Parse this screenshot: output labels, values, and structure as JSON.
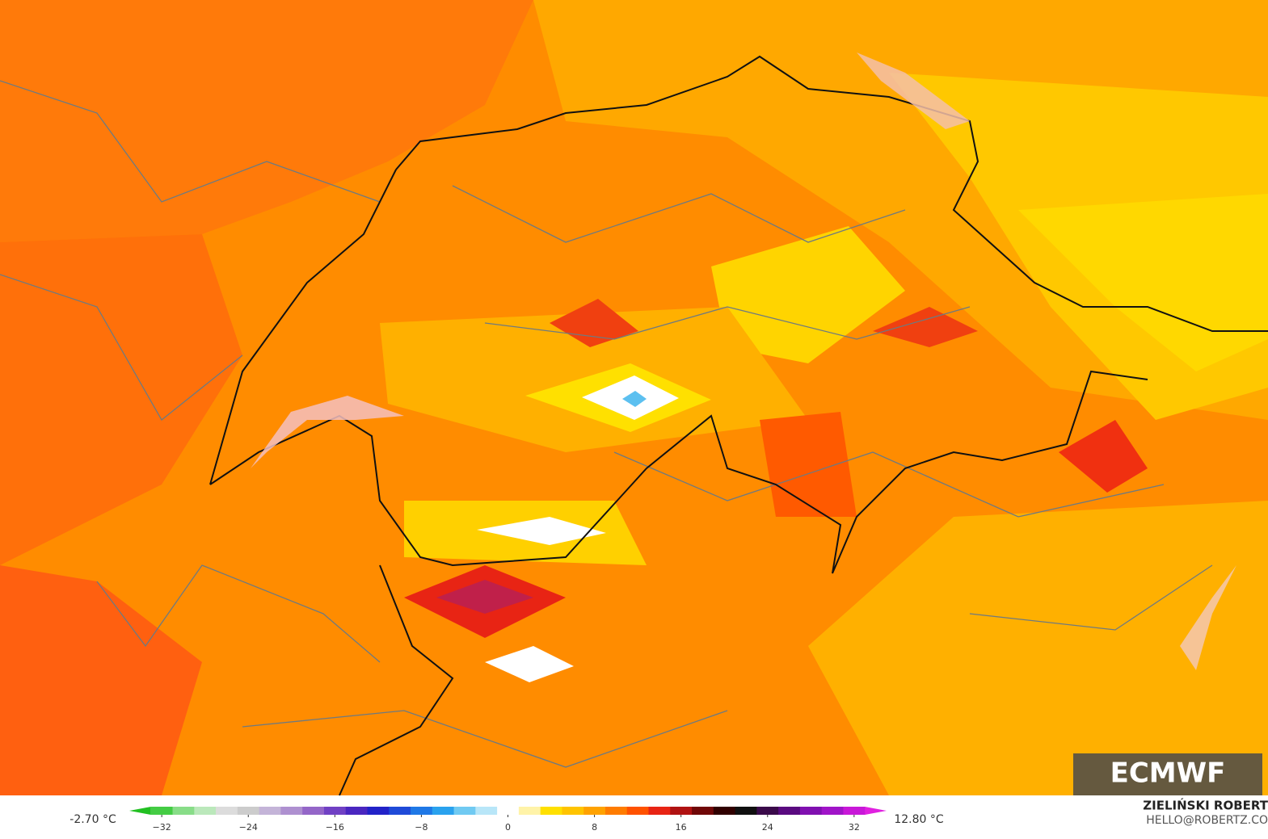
{
  "legend": {
    "min_label": "-2.70 °C",
    "max_label": "12.80 °C",
    "range": [
      -35,
      35
    ],
    "ticks": [
      {
        "value": -32,
        "label": "−32"
      },
      {
        "value": -24,
        "label": "−24"
      },
      {
        "value": -16,
        "label": "−16"
      },
      {
        "value": -8,
        "label": "−8"
      },
      0,
      8,
      16,
      24,
      32
    ],
    "colors": [
      "#22c022",
      "#44cc44",
      "#88dd88",
      "#bbe8bb",
      "#dcdcdc",
      "#cccccc",
      "#c4b4d8",
      "#ae90d0",
      "#9466c8",
      "#7040c4",
      "#4a26c0",
      "#2222c8",
      "#1f4ad8",
      "#1f78e6",
      "#2aa2ee",
      "#70caf2",
      "#b8e6f8",
      "#ffffff",
      "#fff3a8",
      "#ffe000",
      "#ffc400",
      "#ffa200",
      "#ff7c00",
      "#ff5200",
      "#e82414",
      "#b01212",
      "#700808",
      "#300000",
      "#101010",
      "#3a0a4a",
      "#5a0a80",
      "#8010b0",
      "#a014c8",
      "#c818d8",
      "#e020e0"
    ]
  },
  "logo": "ECMWF",
  "credit": {
    "name": "ZIELIŃSKI ROBERT",
    "contact": "HELLO@ROBERTZ.CO"
  }
}
